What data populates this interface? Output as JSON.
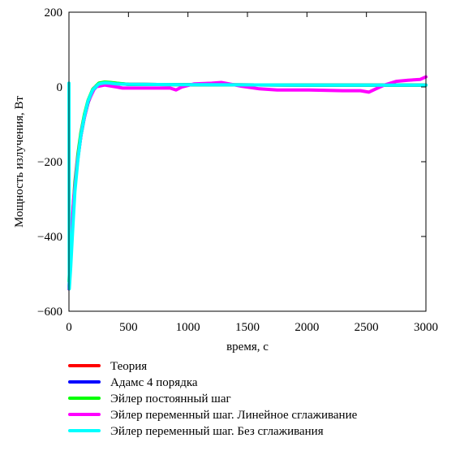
{
  "chart_data": {
    "type": "line",
    "xlabel": "время, с",
    "ylabel": "Мощность излучения, Вт",
    "xlim": [
      0,
      3000
    ],
    "ylim": [
      -600,
      200
    ],
    "xticks": [
      "0",
      "500",
      "1000",
      "1500",
      "2000",
      "2500",
      "3000"
    ],
    "yticks": [
      "200",
      "0",
      "−200",
      "−400",
      "−600"
    ],
    "grid": false,
    "legend_position": "bottom",
    "series": [
      {
        "name": "Теория",
        "color": "#ff0000",
        "points": [
          [
            0,
            -540
          ],
          [
            15,
            -460
          ],
          [
            30,
            -360
          ],
          [
            50,
            -265
          ],
          [
            75,
            -190
          ],
          [
            100,
            -130
          ],
          [
            130,
            -80
          ],
          [
            160,
            -42
          ],
          [
            200,
            -10
          ],
          [
            250,
            8
          ],
          [
            300,
            12
          ],
          [
            350,
            11
          ],
          [
            400,
            9
          ],
          [
            500,
            7
          ],
          [
            1000,
            6
          ],
          [
            2000,
            5
          ],
          [
            3000,
            5
          ]
        ]
      },
      {
        "name": "Адамс 4 порядка",
        "color": "#0000ff",
        "points": [
          [
            0,
            -540
          ],
          [
            15,
            -460
          ],
          [
            30,
            -360
          ],
          [
            50,
            -265
          ],
          [
            75,
            -190
          ],
          [
            100,
            -130
          ],
          [
            130,
            -80
          ],
          [
            160,
            -42
          ],
          [
            200,
            -10
          ],
          [
            250,
            8
          ],
          [
            300,
            12
          ],
          [
            350,
            11
          ],
          [
            400,
            9
          ],
          [
            500,
            7
          ],
          [
            1000,
            6
          ],
          [
            2000,
            5
          ],
          [
            3000,
            5
          ]
        ]
      },
      {
        "name": "Эйлер постоянный шаг",
        "color": "#00ff00",
        "points": [
          [
            0,
            -520
          ],
          [
            15,
            -440
          ],
          [
            30,
            -345
          ],
          [
            50,
            -255
          ],
          [
            75,
            -180
          ],
          [
            100,
            -122
          ],
          [
            130,
            -73
          ],
          [
            160,
            -36
          ],
          [
            200,
            -6
          ],
          [
            250,
            10
          ],
          [
            300,
            13
          ],
          [
            350,
            12
          ],
          [
            400,
            10
          ],
          [
            500,
            7
          ],
          [
            1000,
            6
          ],
          [
            2000,
            5
          ],
          [
            3000,
            5
          ]
        ]
      },
      {
        "name": "Эйлер переменный шаг. Линейное сглаживание",
        "color": "#ff00ff",
        "points": [
          [
            0,
            -540
          ],
          [
            20,
            -400
          ],
          [
            40,
            -300
          ],
          [
            70,
            -200
          ],
          [
            110,
            -110
          ],
          [
            160,
            -40
          ],
          [
            220,
            0
          ],
          [
            300,
            5
          ],
          [
            400,
            0
          ],
          [
            450,
            -3
          ],
          [
            600,
            -3
          ],
          [
            850,
            -3
          ],
          [
            900,
            -8
          ],
          [
            950,
            0
          ],
          [
            1050,
            8
          ],
          [
            1200,
            10
          ],
          [
            1280,
            12
          ],
          [
            1350,
            8
          ],
          [
            1450,
            2
          ],
          [
            1600,
            -5
          ],
          [
            1750,
            -8
          ],
          [
            2000,
            -8
          ],
          [
            2300,
            -10
          ],
          [
            2450,
            -10
          ],
          [
            2520,
            -14
          ],
          [
            2580,
            -5
          ],
          [
            2650,
            5
          ],
          [
            2750,
            15
          ],
          [
            2850,
            18
          ],
          [
            2950,
            20
          ],
          [
            3000,
            27
          ]
        ]
      },
      {
        "name": "Эйлер переменный шаг. Без сглаживания",
        "color": "#00ffff",
        "points": [
          [
            0,
            10
          ],
          [
            3,
            -540
          ],
          [
            15,
            -480
          ],
          [
            30,
            -390
          ],
          [
            50,
            -280
          ],
          [
            75,
            -195
          ],
          [
            100,
            -130
          ],
          [
            130,
            -78
          ],
          [
            160,
            -38
          ],
          [
            200,
            -8
          ],
          [
            250,
            8
          ],
          [
            300,
            11
          ],
          [
            350,
            10
          ],
          [
            400,
            8
          ],
          [
            500,
            7
          ],
          [
            1000,
            6
          ],
          [
            2000,
            5
          ],
          [
            3000,
            5
          ]
        ]
      }
    ]
  }
}
